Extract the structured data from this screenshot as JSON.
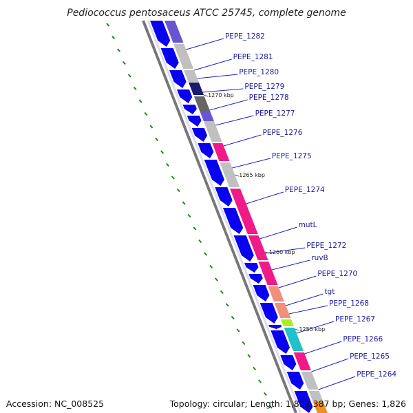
{
  "title": "Pediococcus pentosaceus ATCC 25745, complete genome",
  "accession_text": "Accession: NC_008525",
  "summary_text": "Topology: circular; Length: 1,832,387 bp; Genes: 1,826",
  "colors": {
    "forward_cds": "#0a00f0",
    "backbone": "#777777",
    "pink": "#f01a88",
    "gray": "#c0c0c0",
    "purple": "#6a55d0",
    "navy": "#1a1a70",
    "darkgray": "#666666",
    "salmon": "#f0907a",
    "lime": "#aaee22",
    "cyan": "#20c0cc",
    "orange": "#f09020",
    "kbp_tick": "#1a8a1a",
    "label_line": "#2020c0"
  },
  "kbp_marks": [
    "1270 kbp",
    "1265 kbp",
    "1260 kbp",
    "1255 kbp"
  ],
  "gene_labels": [
    "PEPE_1282",
    "PEPE_1281",
    "PEPE_1280",
    "PEPE_1279",
    "PEPE_1278",
    "PEPE_1277",
    "PEPE_1276",
    "PEPE_1275",
    "PEPE_1274",
    "mutL",
    "PEPE_1272",
    "ruvB",
    "PEPE_1270",
    "tgt",
    "PEPE_1268",
    "PEPE_1267",
    "PEPE_1266",
    "PEPE_1265",
    "PEPE_1264"
  ]
}
